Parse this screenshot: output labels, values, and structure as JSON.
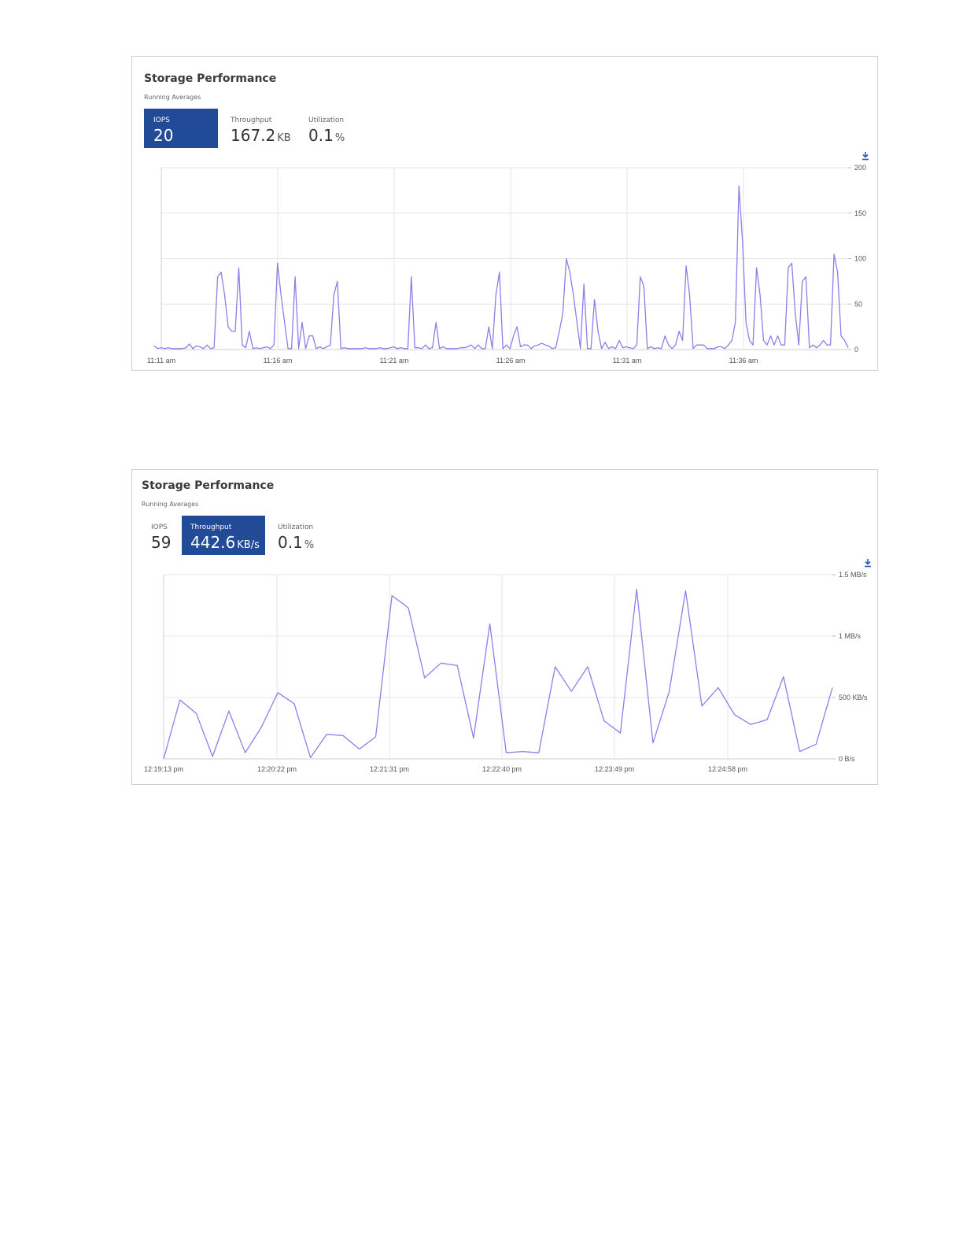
{
  "panels": [
    {
      "title": "Storage Performance",
      "subtitle": "Running Averages",
      "metrics": [
        {
          "label": "IOPS",
          "value": "20",
          "unit": "",
          "active": true
        },
        {
          "label": "Throughput",
          "value": "167.2",
          "unit": "KB",
          "active": false
        },
        {
          "label": "Utilization",
          "value": "0.1",
          "unit": "%",
          "active": false
        }
      ],
      "download_icon": "download-icon"
    },
    {
      "title": "Storage Performance",
      "subtitle": "Running Averages",
      "metrics": [
        {
          "label": "IOPS",
          "value": "59",
          "unit": "",
          "active": false
        },
        {
          "label": "Throughput",
          "value": "442.6",
          "unit": "KB/s",
          "active": true
        },
        {
          "label": "Utilization",
          "value": "0.1",
          "unit": "%",
          "active": false
        }
      ],
      "download_icon": "download-icon"
    }
  ],
  "colors": {
    "active_tab": "#214a97",
    "line": "#8b7fe8",
    "grid": "#e6e6e6"
  },
  "chart_data": [
    {
      "type": "line",
      "series": [
        {
          "values": [
            4,
            1,
            2,
            1,
            2,
            1,
            1,
            1,
            1,
            2,
            6,
            1,
            4,
            3,
            1,
            5,
            1,
            2,
            80,
            85,
            60,
            25,
            20,
            20,
            90,
            5,
            2,
            20,
            1,
            2,
            1,
            2,
            3,
            1,
            5,
            95,
            60,
            30,
            1,
            1,
            80,
            1,
            30,
            1,
            15,
            15,
            1,
            3,
            1,
            3,
            5,
            60,
            75,
            1,
            2,
            1,
            1,
            1,
            1,
            1,
            2,
            1,
            1,
            1,
            2,
            1,
            1,
            2,
            3,
            1,
            2,
            1,
            1,
            80,
            2,
            2,
            1,
            5,
            1,
            2,
            30,
            1,
            3,
            1,
            1,
            1,
            1,
            2,
            2,
            3,
            5,
            1,
            5,
            1,
            1,
            25,
            1,
            60,
            85,
            1,
            5,
            1,
            15,
            25,
            3,
            5,
            5,
            1,
            4,
            5,
            7,
            5,
            4,
            1,
            2,
            20,
            40,
            100,
            85,
            60,
            30,
            1,
            72,
            1,
            1,
            55,
            20,
            1,
            8,
            1,
            3,
            1,
            10,
            2,
            3,
            2,
            1,
            5,
            80,
            70,
            1,
            3,
            1,
            2,
            1,
            15,
            5,
            1,
            5,
            20,
            10,
            92,
            60,
            1,
            5,
            5,
            5,
            1,
            1,
            1,
            3,
            3,
            1,
            5,
            10,
            30,
            180,
            120,
            30,
            10,
            5,
            90,
            60,
            10,
            5,
            15,
            5,
            15,
            5,
            5,
            90,
            95,
            40,
            5,
            75,
            80,
            2,
            5,
            2,
            5,
            10,
            5,
            5,
            105,
            85,
            15,
            10,
            2
          ]
        }
      ],
      "yticks": [
        "200",
        "150",
        "100",
        "50",
        "0"
      ],
      "ylim": [
        0,
        200
      ],
      "xticks": [
        "11:11 am",
        "11:16 am",
        "11:21 am",
        "11:26 am",
        "11:31 am",
        "11:36 am"
      ],
      "grid": true
    },
    {
      "type": "line",
      "series": [
        {
          "values": [
            0,
            480,
            370,
            20,
            390,
            50,
            260,
            540,
            450,
            10,
            200,
            190,
            80,
            180,
            1330,
            1230,
            660,
            780,
            760,
            170,
            1100,
            50,
            60,
            50,
            750,
            550,
            750,
            310,
            210,
            1380,
            130,
            550,
            1370,
            430,
            580,
            360,
            280,
            320,
            670,
            60,
            120,
            580
          ]
        }
      ],
      "yticks": [
        "1.5 MB/s",
        "1 MB/s",
        "500 KB/s",
        "0 B/s"
      ],
      "ylim": [
        0,
        1500
      ],
      "xticks": [
        "12:19:13 pm",
        "12:20:22 pm",
        "12:21:31 pm",
        "12:22:40 pm",
        "12:23:49 pm",
        "12:24:58 pm"
      ],
      "grid": true
    }
  ]
}
